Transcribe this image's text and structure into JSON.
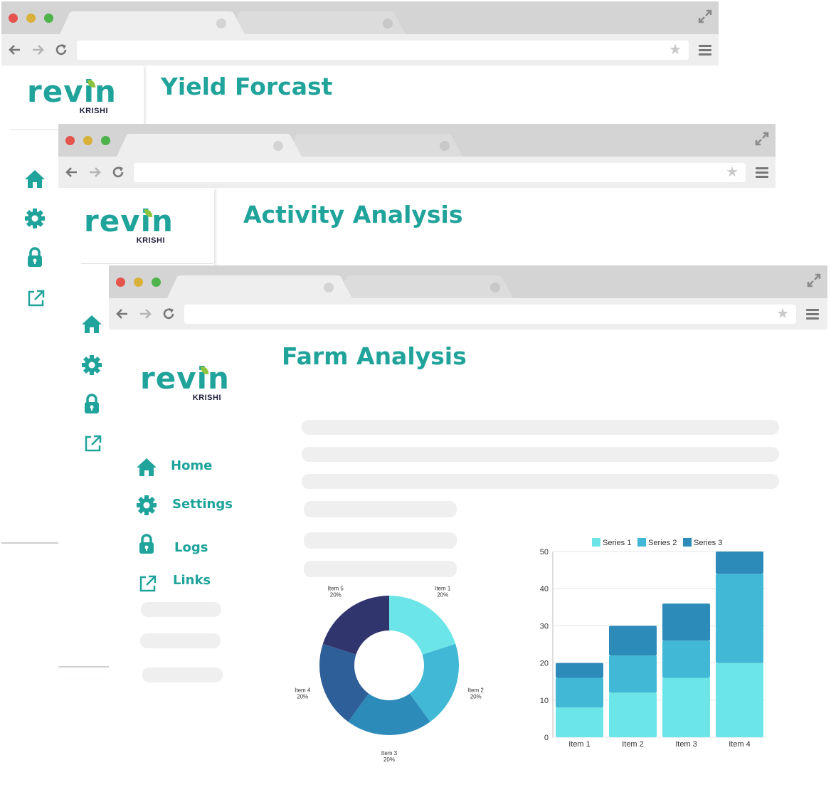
{
  "windows": [
    {
      "title": "Yield Forcast"
    },
    {
      "title": "Activity Analysis"
    },
    {
      "title": "Farm Analysis"
    }
  ],
  "logo": {
    "word": "revin",
    "sub": "KRISHI"
  },
  "nav": {
    "items": [
      {
        "label": "Home",
        "icon": "home-icon"
      },
      {
        "label": "Settings",
        "icon": "gear-icon"
      },
      {
        "label": "Logs",
        "icon": "lock-icon"
      },
      {
        "label": "Links",
        "icon": "external-link-icon"
      }
    ]
  },
  "colors": {
    "accent": "#1fa39a",
    "leaf": "#8cc43f",
    "navy": "#1c1c3a"
  },
  "chart_data": [
    {
      "type": "pie",
      "variant": "donut",
      "slices": [
        {
          "label": "Item 1",
          "value": 20,
          "value_label": "20%",
          "color": "#6ce5e8"
        },
        {
          "label": "Item 2",
          "value": 20,
          "value_label": "20%",
          "color": "#41b8d5"
        },
        {
          "label": "Item 3",
          "value": 20,
          "value_label": "20%",
          "color": "#2d8bba"
        },
        {
          "label": "Item 4",
          "value": 20,
          "value_label": "20%",
          "color": "#2f5f98"
        },
        {
          "label": "Item 5",
          "value": 20,
          "value_label": "20%",
          "color": "#31356e"
        }
      ]
    },
    {
      "type": "bar",
      "stacked": true,
      "categories": [
        "Item 1",
        "Item 2",
        "Item 3",
        "Item 4"
      ],
      "series": [
        {
          "name": "Series 1",
          "values": [
            8,
            12,
            16,
            20
          ],
          "color": "#6ce5e8"
        },
        {
          "name": "Series 2",
          "values": [
            8,
            10,
            10,
            24
          ],
          "color": "#41b8d5"
        },
        {
          "name": "Series 3",
          "values": [
            4,
            8,
            10,
            6
          ],
          "color": "#2d8bba"
        }
      ],
      "yticks": [
        "0",
        "10",
        "20",
        "30",
        "40",
        "50"
      ],
      "ylim": [
        0,
        50
      ],
      "legend": "top",
      "grid": true
    }
  ]
}
